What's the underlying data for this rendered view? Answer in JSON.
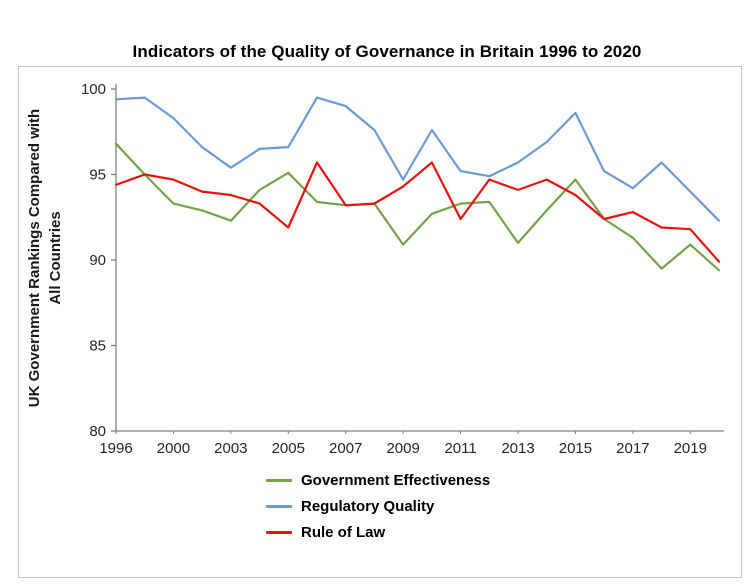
{
  "chart_data": {
    "type": "line",
    "title": "Indicators of the Quality of Governance in Britain 1996 to 2020",
    "ylabel": "UK Government Rankings Compared with All Countries",
    "ylabel_lines": [
      "UK Government Rankings Compared with",
      "All Countries"
    ],
    "xlabel": "",
    "ylim": [
      80,
      100
    ],
    "y_ticks": [
      80,
      85,
      90,
      95,
      100
    ],
    "x": [
      1996,
      1998,
      2000,
      2002,
      2003,
      2004,
      2005,
      2006,
      2007,
      2008,
      2009,
      2010,
      2011,
      2012,
      2013,
      2014,
      2015,
      2016,
      2017,
      2018,
      2019,
      2020
    ],
    "x_tick_labels": [
      "1996",
      "2000",
      "2003",
      "2005",
      "2007",
      "2009",
      "2011",
      "2013",
      "2015",
      "2017",
      "2019"
    ],
    "x_tick_indices": [
      0,
      2,
      4,
      6,
      8,
      10,
      12,
      14,
      16,
      18,
      20
    ],
    "grid": false,
    "legend_position": "bottom",
    "axis_color": "#808080",
    "series": [
      {
        "name": "Government Effectiveness",
        "color": "#74A24B",
        "values": [
          96.8,
          95.0,
          93.3,
          92.9,
          92.3,
          94.1,
          95.1,
          93.4,
          93.2,
          93.3,
          90.9,
          92.7,
          93.3,
          93.4,
          91.0,
          92.9,
          94.7,
          92.4,
          91.3,
          89.5,
          90.9,
          89.4
        ]
      },
      {
        "name": "Regulatory Quality",
        "color": "#6C9BD2",
        "values": [
          99.4,
          99.5,
          98.3,
          96.6,
          95.4,
          96.5,
          96.6,
          99.5,
          99.0,
          97.6,
          94.7,
          97.6,
          95.2,
          94.9,
          95.7,
          96.9,
          98.6,
          95.2,
          94.2,
          95.7,
          94.0,
          92.3
        ]
      },
      {
        "name": "Rule of Law",
        "color": "#E2150F",
        "values": [
          94.4,
          95.0,
          94.7,
          94.0,
          93.8,
          93.3,
          91.9,
          95.7,
          93.2,
          93.3,
          94.3,
          95.7,
          92.4,
          94.7,
          94.1,
          94.7,
          93.8,
          92.4,
          92.8,
          91.9,
          91.8,
          89.9
        ]
      }
    ]
  }
}
